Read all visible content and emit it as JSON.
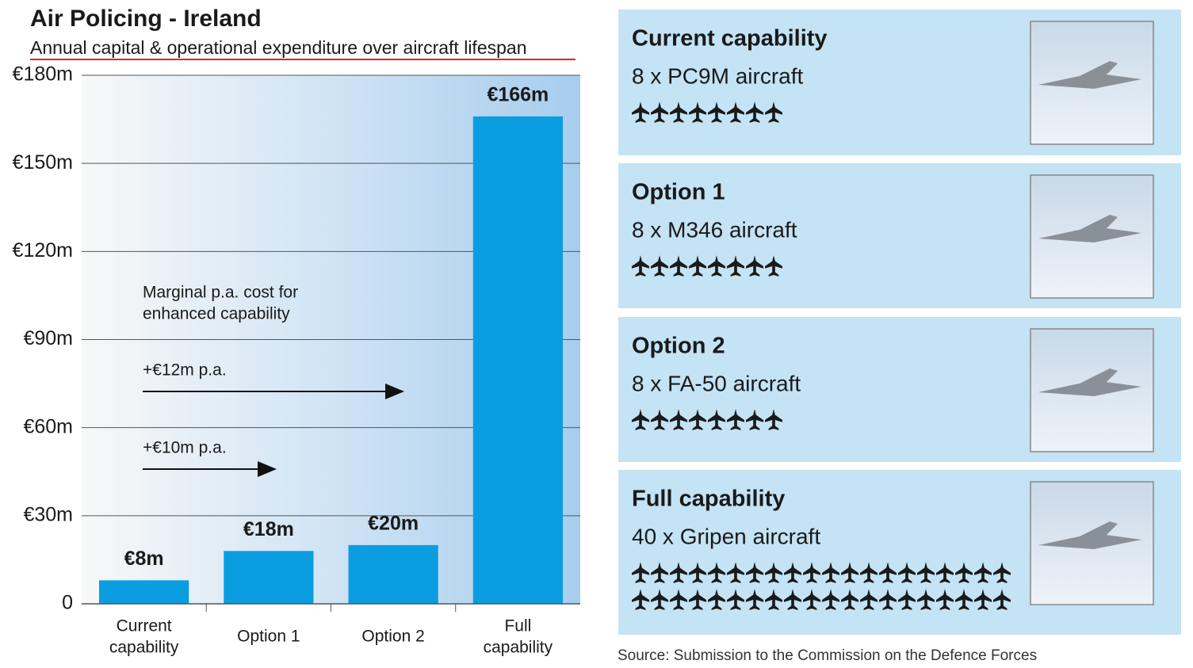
{
  "chart_data": {
    "type": "bar",
    "title": "Air Policing - Ireland",
    "subtitle": "Annual capital & operational expenditure over aircraft lifespan",
    "categories": [
      "Current capability",
      "Option 1",
      "Option 2",
      "Full capability"
    ],
    "values": [
      8,
      18,
      20,
      166
    ],
    "value_labels": [
      "€8m",
      "€18m",
      "€20m",
      "€166m"
    ],
    "color": "#0a9de0",
    "ylim": [
      0,
      180
    ],
    "yticks": [
      0,
      {
        "value": 30,
        "label": "€30m"
      },
      {
        "value": 60,
        "label": "€60m"
      },
      {
        "value": 90,
        "label": "€90m"
      },
      {
        "value": 120,
        "label": "€120m"
      },
      {
        "value": 150,
        "label": "€150m"
      },
      {
        "value": 180,
        "label": "€180m"
      }
    ],
    "grid": true,
    "annotations": [
      "Marginal p.a. cost for enhanced capability",
      "+€12m p.a.",
      "+€10m p.a."
    ]
  },
  "panels": [
    {
      "title": "Current capability",
      "subtitle": "8 x PC9M aircraft",
      "aircraft_count": 8
    },
    {
      "title": "Option 1",
      "subtitle": "8 x M346 aircraft",
      "aircraft_count": 8
    },
    {
      "title": "Option 2",
      "subtitle": "8 x FA-50 aircraft",
      "aircraft_count": 8
    },
    {
      "title": "Full capability",
      "subtitle": "40 x Gripen aircraft",
      "aircraft_count": 40
    }
  ],
  "source": "Source: Submission to the Commission on the Defence Forces"
}
